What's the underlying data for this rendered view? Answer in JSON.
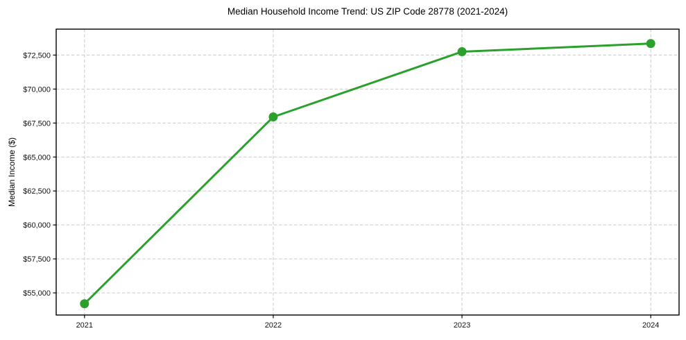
{
  "chart_data": {
    "type": "line",
    "title": "Median Household Income Trend: US ZIP Code 28778 (2021-2024)",
    "xlabel": "",
    "ylabel": "Median Income ($)",
    "x": [
      2021,
      2022,
      2023,
      2024
    ],
    "categories": [
      "2021",
      "2022",
      "2023",
      "2024"
    ],
    "series": [
      {
        "name": "Median Household Income",
        "values": [
          54200,
          67950,
          72750,
          73350
        ]
      }
    ],
    "x_tick_labels": [
      "2021",
      "2022",
      "2023",
      "2024"
    ],
    "y_ticks": [
      55000,
      57500,
      60000,
      62500,
      65000,
      67500,
      70000,
      72500
    ],
    "y_tick_labels": [
      "$55,000",
      "$57,500",
      "$60,000",
      "$62,500",
      "$65,000",
      "$67,500",
      "$70,000",
      "$72,500"
    ],
    "xlim": [
      2020.85,
      2024.15
    ],
    "ylim": [
      53370,
      74410
    ],
    "grid": true,
    "legend": false,
    "colors": {
      "line": "#2ca02c",
      "marker": "#2ca02c",
      "grid": "#c9c9c9",
      "axis": "#000000",
      "text": "#111111",
      "background": "#ffffff"
    },
    "marker": "circle",
    "line_width": 3,
    "marker_radius": 6.5
  }
}
